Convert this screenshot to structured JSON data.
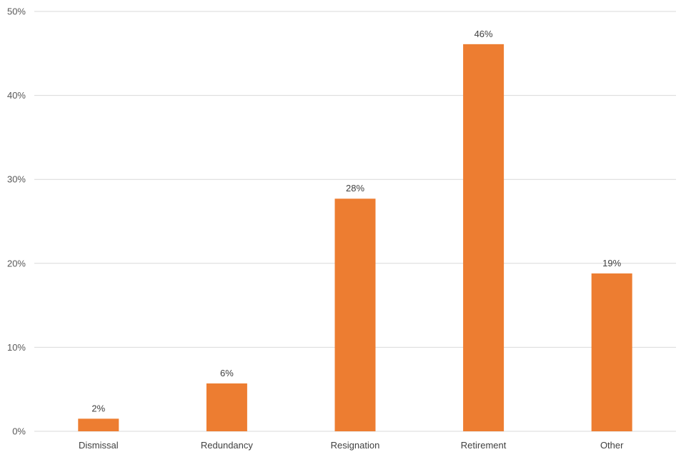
{
  "chart_data": {
    "type": "bar",
    "title": "",
    "xlabel": "",
    "ylabel": "",
    "categories": [
      "Dismissal",
      "Redundancy",
      "Resignation",
      "Retirement",
      "Other"
    ],
    "values": [
      1.5,
      5.7,
      27.7,
      46.1,
      18.8
    ],
    "data_labels": [
      "2%",
      "6%",
      "28%",
      "46%",
      "19%"
    ],
    "ylim": [
      0,
      50
    ],
    "yticks": [
      0,
      10,
      20,
      30,
      40,
      50
    ],
    "ytick_labels": [
      "0%",
      "10%",
      "20%",
      "30%",
      "40%",
      "50%"
    ],
    "grid": true,
    "legend": "none",
    "bar_color": "#ED7D31"
  }
}
